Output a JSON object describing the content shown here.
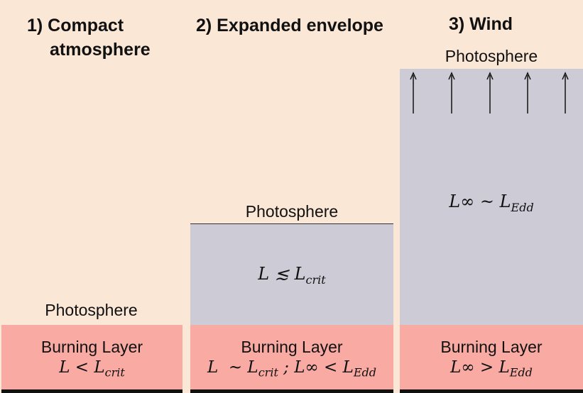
{
  "panel1": {
    "title_line1": "1) Compact",
    "title_line2": "atmosphere",
    "photosphere": "Photosphere",
    "burning_layer": "Burning Layer",
    "burning_relation": "L < L_crit"
  },
  "panel2": {
    "title": "2) Expanded envelope",
    "photosphere": "Photosphere",
    "envelope_relation": "L ≲ L_crit",
    "burning_layer": "Burning Layer",
    "burning_relation": "L ~ L_crit ; L∞ < L_Edd"
  },
  "panel3": {
    "title": "3) Wind",
    "photosphere": "Photosphere",
    "envelope_relation": "L∞ ~ L_Edd",
    "burning_layer": "Burning Layer",
    "burning_relation": "L∞ > L_Edd",
    "arrow_count": 5
  },
  "colors": {
    "background": "#fbe7d6",
    "envelope": "#cccbd6",
    "burning_layer": "#f8aaa3",
    "text": "#111111"
  }
}
